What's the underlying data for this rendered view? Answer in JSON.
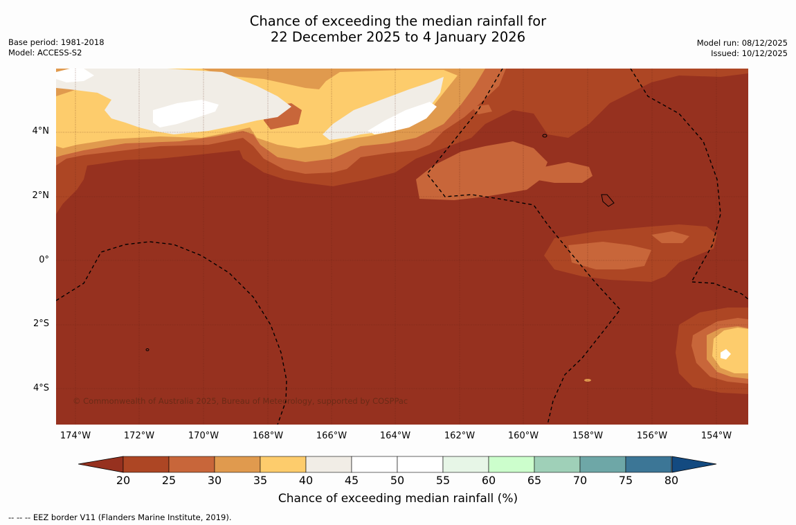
{
  "header": {
    "title_line1": "Chance of exceeding the median rainfall for",
    "title_line2": "22 December 2025 to 4 January 2026",
    "base_period": "Base period: 1981-2018",
    "model": "Model: ACCESS-S2",
    "model_run": "Model run: 08/12/2025",
    "issued": "Issued: 10/12/2025"
  },
  "map": {
    "copyright": "© Commonwealth of Australia 2025, Bureau of Meteorology, supported by COSPPac",
    "lat_labels": [
      "4°N",
      "2°N",
      "0°",
      "2°S",
      "4°S"
    ],
    "lon_labels": [
      "174°W",
      "172°W",
      "170°W",
      "168°W",
      "166°W",
      "164°W",
      "162°W",
      "160°W",
      "158°W",
      "156°W",
      "154°W"
    ],
    "extent": {
      "lon": [
        -174.6,
        -153.0
      ],
      "lat": [
        -5.0,
        6.0
      ]
    }
  },
  "colorbar": {
    "label": "Chance of exceeding median rainfall (%)",
    "ticks": [
      "20",
      "25",
      "30",
      "35",
      "40",
      "45",
      "50",
      "55",
      "60",
      "65",
      "70",
      "75",
      "80"
    ],
    "colors": [
      "#ad4624",
      "#c8663a",
      "#e09a4e",
      "#fdcc6c",
      "#f1ede6",
      "#ffffff",
      "#ffffff",
      "#e7f6e7",
      "#ccfecc",
      "#9fd0b8",
      "#6ea7a7",
      "#3c7696"
    ],
    "under_color": "#96311f",
    "over_color": "#134a80"
  },
  "footnote": "--  --  -- EEZ border V11 (Flanders Marine Institute, 2019)."
}
